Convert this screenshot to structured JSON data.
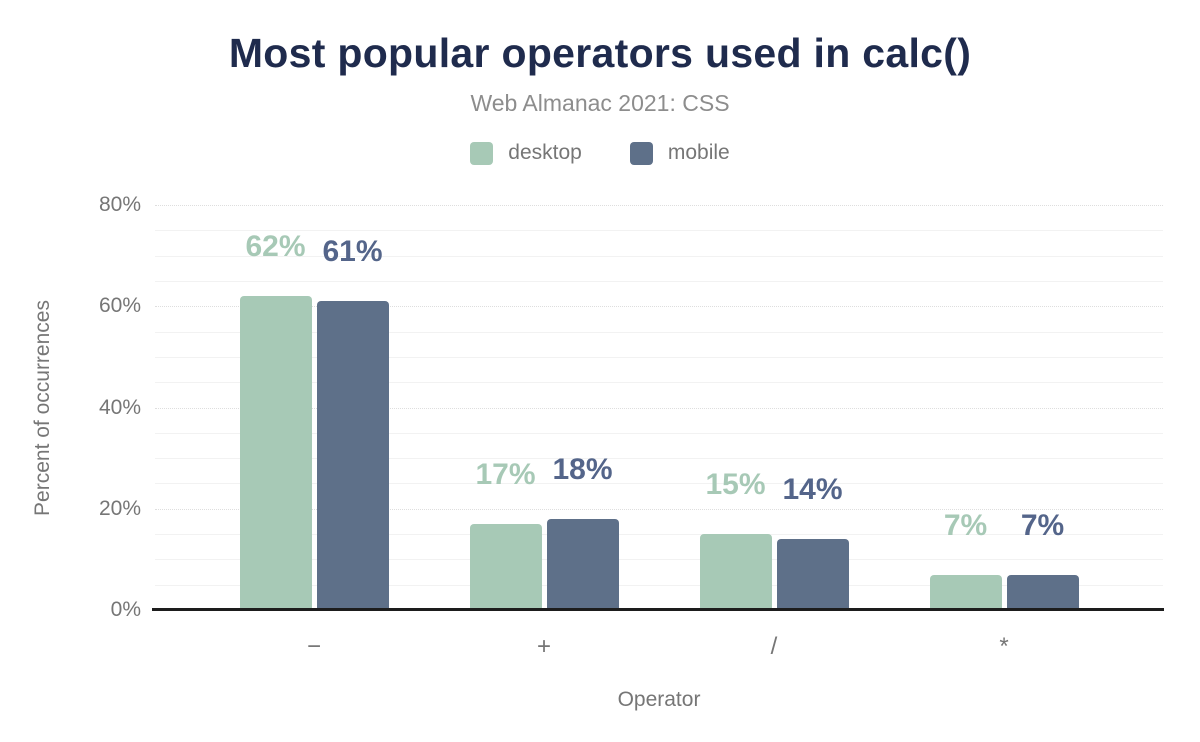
{
  "colors": {
    "title": "#1f2b4d",
    "subtitle": "#8d8d8d",
    "axis_text": "#767676",
    "axis_line": "#1d1d1d",
    "grid_minor": "#f2f2f2",
    "grid_major": "#dedede",
    "background": "#ffffff",
    "desktop_series": "#a7c9b6",
    "mobile_series": "#5e7089"
  },
  "chart_data": {
    "type": "bar",
    "title": "Most popular operators used in calc()",
    "subtitle": "Web Almanac 2021: CSS",
    "categories": [
      "−",
      "+",
      "/",
      "*"
    ],
    "series": [
      {
        "name": "desktop",
        "color": "#a7c9b6",
        "label_color": "#a7c9b6",
        "values": [
          62,
          17,
          15,
          7
        ]
      },
      {
        "name": "mobile",
        "color": "#5e7089",
        "label_color": "#54658a",
        "values": [
          61,
          18,
          14,
          7
        ]
      }
    ],
    "data_label_suffix": "%",
    "xlabel": "Operator",
    "ylabel": "Percent of occurrences",
    "ylim": [
      0,
      80
    ],
    "yticks": [
      0,
      20,
      40,
      60,
      80
    ],
    "ytick_suffix": "%",
    "minor_grid_step": 5,
    "major_grid_step": 20,
    "grid": true,
    "legend_position": "top"
  }
}
